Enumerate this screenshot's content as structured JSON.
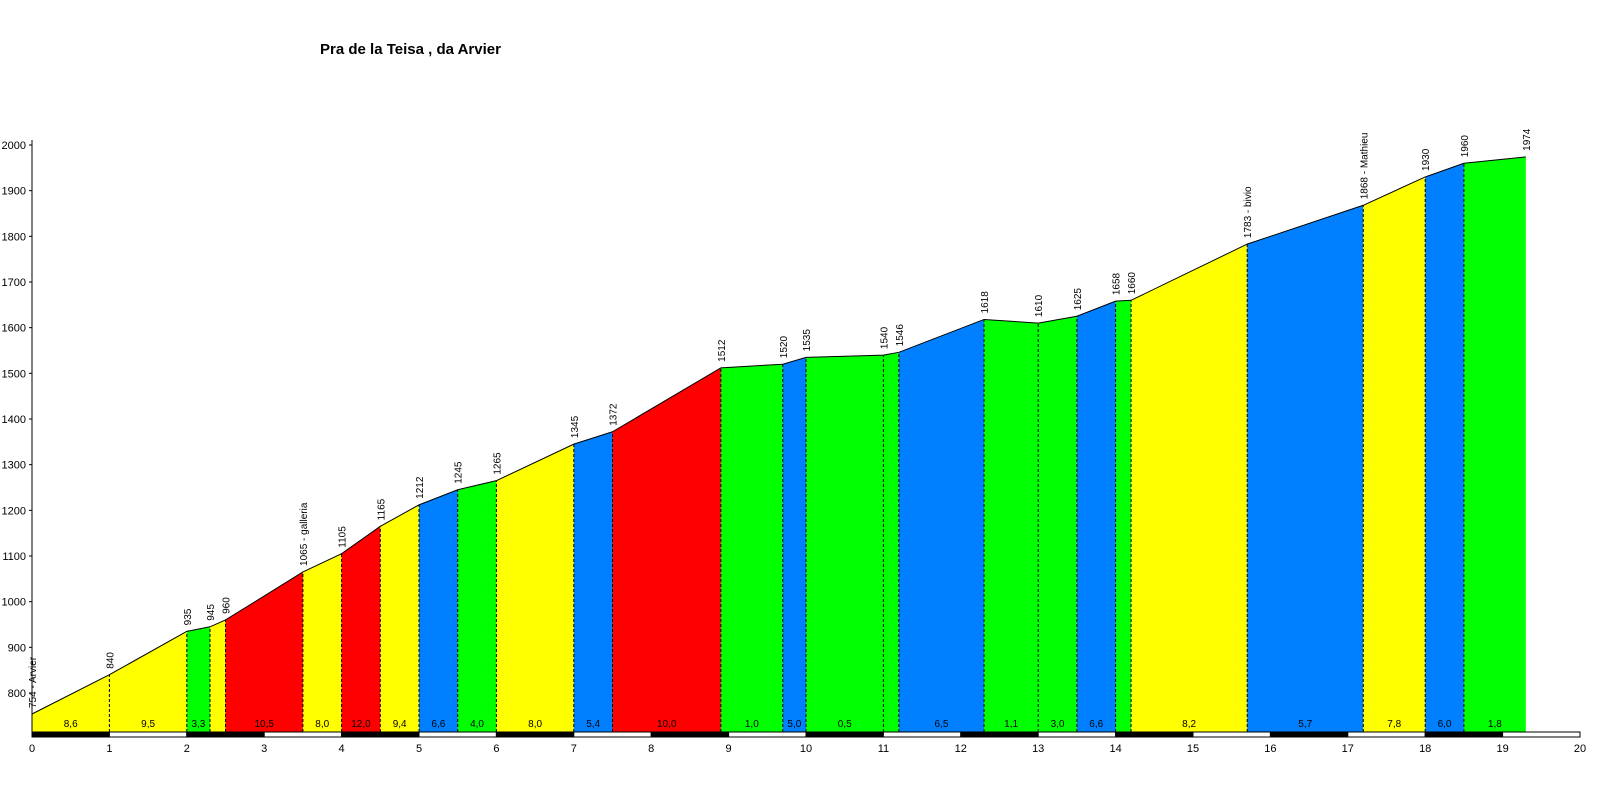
{
  "chart_data": {
    "type": "area",
    "title": "Pra de la Teisa , da Arvier",
    "xlabel": "",
    "ylabel": "",
    "xlim": [
      0,
      20
    ],
    "ylim": [
      700,
      2000
    ],
    "x_ticks": [
      0,
      1,
      2,
      3,
      4,
      5,
      6,
      7,
      8,
      9,
      10,
      11,
      12,
      13,
      14,
      15,
      16,
      17,
      18,
      19,
      20
    ],
    "y_ticks": [
      800,
      900,
      1000,
      1100,
      1200,
      1300,
      1400,
      1500,
      1600,
      1700,
      1800,
      1900,
      2000
    ],
    "colors": {
      "yellow": "#ffff00",
      "green": "#00ff00",
      "red": "#ff0000",
      "blue": "#0080ff"
    },
    "points": [
      {
        "x": 0,
        "y": 754,
        "label": "754 - Arvier"
      },
      {
        "x": 1,
        "y": 840,
        "label": "840"
      },
      {
        "x": 2,
        "y": 935,
        "label": "935"
      },
      {
        "x": 2.3,
        "y": 945,
        "label": "945"
      },
      {
        "x": 2.5,
        "y": 960,
        "label": "960"
      },
      {
        "x": 3.5,
        "y": 1065,
        "label": "1065 - galleria"
      },
      {
        "x": 4,
        "y": 1105,
        "label": "1105"
      },
      {
        "x": 4.5,
        "y": 1165,
        "label": "1165"
      },
      {
        "x": 5,
        "y": 1212,
        "label": "1212"
      },
      {
        "x": 5.5,
        "y": 1245,
        "label": "1245"
      },
      {
        "x": 6,
        "y": 1265,
        "label": "1265"
      },
      {
        "x": 7,
        "y": 1345,
        "label": "1345"
      },
      {
        "x": 7.5,
        "y": 1372,
        "label": "1372"
      },
      {
        "x": 8.9,
        "y": 1512,
        "label": "1512"
      },
      {
        "x": 9.7,
        "y": 1520,
        "label": "1520"
      },
      {
        "x": 10,
        "y": 1535,
        "label": "1535"
      },
      {
        "x": 11,
        "y": 1540,
        "label": "1540"
      },
      {
        "x": 11.2,
        "y": 1546,
        "label": "1546"
      },
      {
        "x": 12.3,
        "y": 1618,
        "label": "1618"
      },
      {
        "x": 13,
        "y": 1610,
        "label": "1610"
      },
      {
        "x": 13.5,
        "y": 1625,
        "label": "1625"
      },
      {
        "x": 14,
        "y": 1658,
        "label": "1658"
      },
      {
        "x": 14.2,
        "y": 1660,
        "label": "1660"
      },
      {
        "x": 15.7,
        "y": 1783,
        "label": "1783 - bivio"
      },
      {
        "x": 17.2,
        "y": 1868,
        "label": "1868 - Mathieu"
      },
      {
        "x": 18,
        "y": 1930,
        "label": "1930"
      },
      {
        "x": 18.5,
        "y": 1960,
        "label": "1960"
      },
      {
        "x": 19.3,
        "y": 1974,
        "label": "1974"
      }
    ],
    "segments": [
      {
        "from": 0,
        "to": 1,
        "grade": "8,6",
        "color": "yellow"
      },
      {
        "from": 1,
        "to": 2,
        "grade": "9,5",
        "color": "yellow"
      },
      {
        "from": 2,
        "to": 2.3,
        "grade": "3,3",
        "color": "green"
      },
      {
        "from": 2.3,
        "to": 2.5,
        "grade": "",
        "color": "yellow"
      },
      {
        "from": 2.5,
        "to": 3.5,
        "grade": "10,5",
        "color": "red"
      },
      {
        "from": 3.5,
        "to": 4,
        "grade": "8,0",
        "color": "yellow"
      },
      {
        "from": 4,
        "to": 4.5,
        "grade": "12,0",
        "color": "red"
      },
      {
        "from": 4.5,
        "to": 5,
        "grade": "9,4",
        "color": "yellow"
      },
      {
        "from": 5,
        "to": 5.5,
        "grade": "6,6",
        "color": "blue"
      },
      {
        "from": 5.5,
        "to": 6,
        "grade": "4,0",
        "color": "green"
      },
      {
        "from": 6,
        "to": 7,
        "grade": "8,0",
        "color": "yellow"
      },
      {
        "from": 7,
        "to": 7.5,
        "grade": "5,4",
        "color": "blue"
      },
      {
        "from": 7.5,
        "to": 8.9,
        "grade": "10,0",
        "color": "red"
      },
      {
        "from": 8.9,
        "to": 9.7,
        "grade": "1,0",
        "color": "green"
      },
      {
        "from": 9.7,
        "to": 10,
        "grade": "5,0",
        "color": "blue"
      },
      {
        "from": 10,
        "to": 11,
        "grade": "0,5",
        "color": "green"
      },
      {
        "from": 11,
        "to": 11.2,
        "grade": "",
        "color": "green"
      },
      {
        "from": 11.2,
        "to": 12.3,
        "grade": "6,5",
        "color": "blue"
      },
      {
        "from": 12.3,
        "to": 13,
        "grade": "1,1",
        "color": "green"
      },
      {
        "from": 13,
        "to": 13.5,
        "grade": "3,0",
        "color": "green"
      },
      {
        "from": 13.5,
        "to": 14,
        "grade": "6,6",
        "color": "blue"
      },
      {
        "from": 14,
        "to": 14.2,
        "grade": "",
        "color": "green"
      },
      {
        "from": 14.2,
        "to": 15.7,
        "grade": "8,2",
        "color": "yellow"
      },
      {
        "from": 15.7,
        "to": 17.2,
        "grade": "5,7",
        "color": "blue"
      },
      {
        "from": 17.2,
        "to": 18,
        "grade": "7,8",
        "color": "yellow"
      },
      {
        "from": 18,
        "to": 18.5,
        "grade": "6,0",
        "color": "blue"
      },
      {
        "from": 18.5,
        "to": 19.3,
        "grade": "1,8",
        "color": "green"
      }
    ]
  }
}
